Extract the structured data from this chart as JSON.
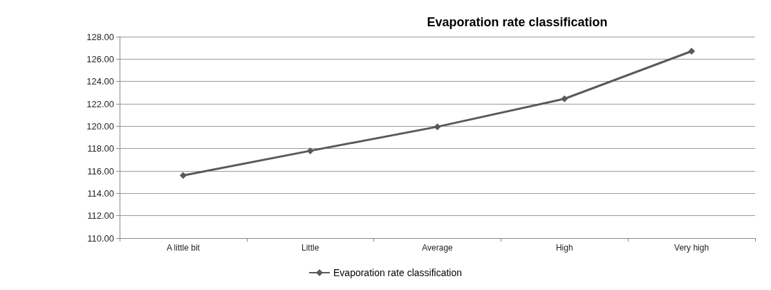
{
  "chart_data": {
    "type": "line",
    "title": "Evaporation rate classification",
    "categories": [
      "A little bit",
      "Little",
      "Average",
      "High",
      "Very high"
    ],
    "series": [
      {
        "name": "Evaporation rate classification",
        "color": "#595959",
        "values": [
          115.6,
          117.8,
          119.95,
          122.45,
          126.7
        ]
      }
    ],
    "ylim": [
      110,
      128
    ],
    "yticks": [
      {
        "value": 110,
        "label": "110.00"
      },
      {
        "value": 112,
        "label": "112.00"
      },
      {
        "value": 114,
        "label": "114.00"
      },
      {
        "value": 116,
        "label": "116.00"
      },
      {
        "value": 118,
        "label": "118.00"
      },
      {
        "value": 120,
        "label": "120.00"
      },
      {
        "value": 122,
        "label": "122.00"
      },
      {
        "value": 124,
        "label": "124.00"
      },
      {
        "value": 126,
        "label": "126.00"
      },
      {
        "value": 128,
        "label": "128.00"
      }
    ],
    "grid": "y",
    "legend": "bottom",
    "marker": "diamond",
    "line_style": "solid"
  }
}
